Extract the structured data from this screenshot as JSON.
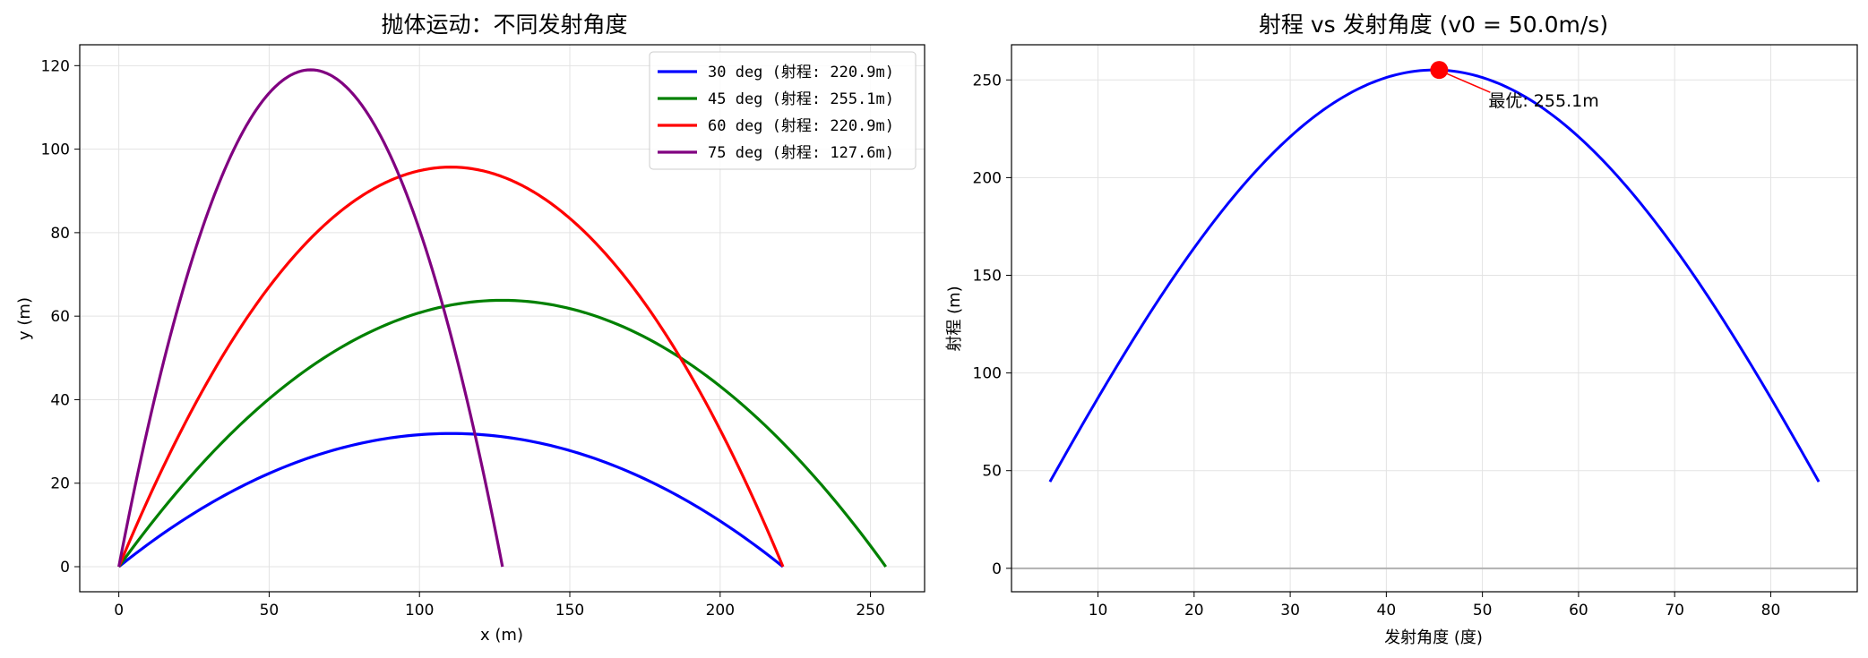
{
  "chart_data": [
    {
      "type": "line",
      "title": "抛体运动：不同发射角度",
      "xlabel": "x (m)",
      "ylabel": "y (m)",
      "xlim": [
        -13,
        268
      ],
      "ylim": [
        -6,
        125
      ],
      "xticks": [
        0,
        50,
        100,
        150,
        200,
        250
      ],
      "yticks": [
        0,
        20,
        40,
        60,
        80,
        100,
        120
      ],
      "grid": true,
      "legend": "top-right",
      "initial_velocity_mps": 50.0,
      "series": [
        {
          "name": "30 deg (射程: 220.9m)",
          "angle_deg": 30,
          "range_m": 220.9,
          "peak_x": 110.4,
          "peak_y": 31.9,
          "color": "#0000ff"
        },
        {
          "name": "45 deg (射程: 255.1m)",
          "angle_deg": 45,
          "range_m": 255.1,
          "peak_x": 127.6,
          "peak_y": 63.8,
          "color": "#008000"
        },
        {
          "name": "60 deg (射程: 220.9m)",
          "angle_deg": 60,
          "range_m": 220.9,
          "peak_x": 110.4,
          "peak_y": 95.7,
          "color": "#ff0000"
        },
        {
          "name": "75 deg (射程: 127.6m)",
          "angle_deg": 75,
          "range_m": 127.6,
          "peak_x": 63.8,
          "peak_y": 119.0,
          "color": "#800080"
        }
      ]
    },
    {
      "type": "line",
      "title": "射程 vs 发射角度 (v0 = 50.0m/s)",
      "xlabel": "发射角度 (度)",
      "ylabel": "射程 (m)",
      "xlim": [
        1,
        89
      ],
      "ylim": [
        -12,
        268
      ],
      "xticks": [
        10,
        20,
        30,
        40,
        50,
        60,
        70,
        80
      ],
      "yticks": [
        0,
        50,
        100,
        150,
        200,
        250
      ],
      "grid": true,
      "angle_range_deg": [
        5,
        85
      ],
      "max_range_m": 255.1,
      "line_color": "#0000ff",
      "reference_line_y": 0,
      "optimum": {
        "angle_deg": 45.5,
        "range_m": 255.1,
        "label": "最优: 255.1m",
        "color": "#ff0000"
      }
    }
  ]
}
